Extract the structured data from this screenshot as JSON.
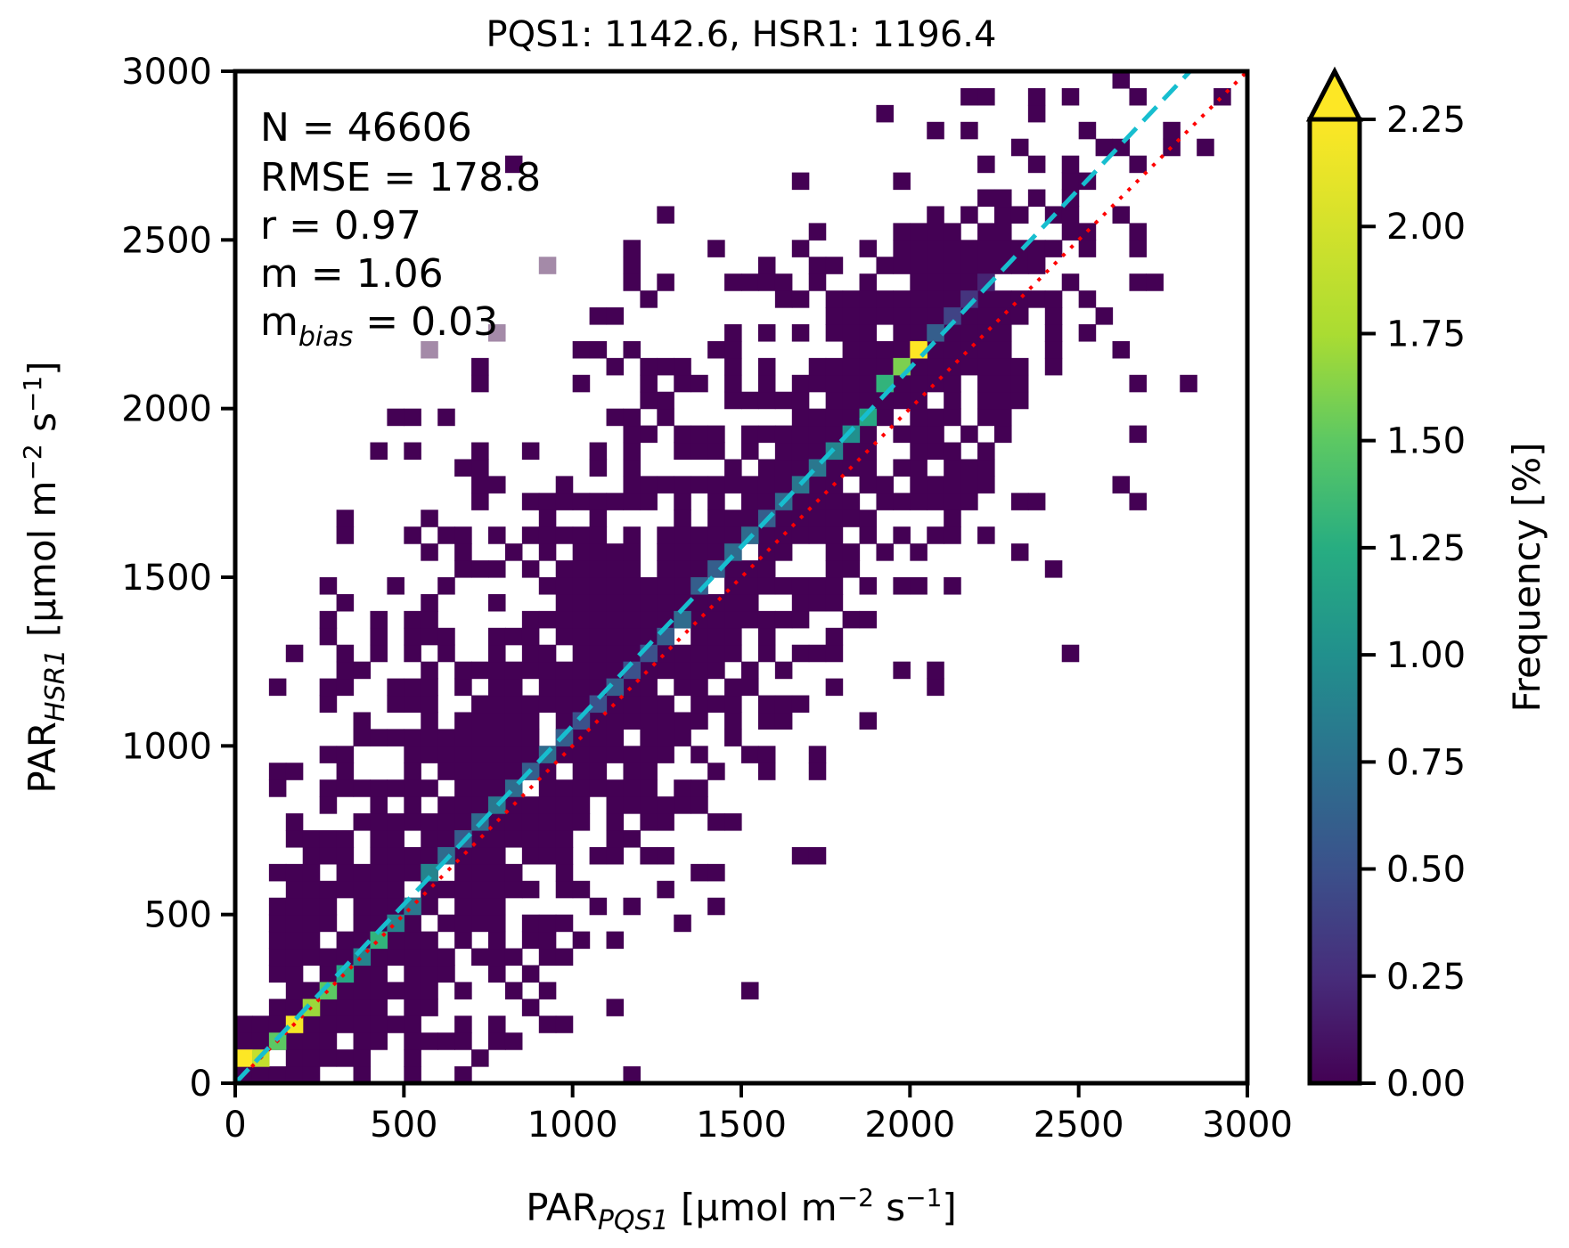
{
  "chart_data": {
    "type": "heatmap",
    "title": "PQS1: 1142.6, HSR1: 1196.4",
    "xlabel": {
      "base": "PAR",
      "sub": "PQS1",
      "rest": " [μmol m",
      "exp1": "−2",
      "mid": " s",
      "exp2": "−1",
      "end": "]"
    },
    "ylabel": {
      "base": "PAR",
      "sub": "HSR1",
      "rest": " [μmol m",
      "exp1": "−2",
      "mid": " s",
      "exp2": "−1",
      "end": "]"
    },
    "xlim": [
      0,
      3000
    ],
    "ylim": [
      0,
      3000
    ],
    "xticks": [
      "0",
      "500",
      "1000",
      "1500",
      "2000",
      "2500",
      "3000"
    ],
    "yticks": [
      "0",
      "500",
      "1000",
      "1500",
      "2000",
      "2500",
      "3000"
    ],
    "stats": {
      "n": "N = 46606",
      "rmse": "RMSE = 178.8",
      "r": "r = 0.97",
      "m": "m = 1.06",
      "mbias_base": "m",
      "mbias_sub": "bias",
      "mbias_val": " = 0.03"
    },
    "colorbar": {
      "label": "Frequency [%]",
      "ticks": [
        "0.00",
        "0.25",
        "0.50",
        "0.75",
        "1.00",
        "1.25",
        "1.50",
        "1.75",
        "2.00",
        "2.25"
      ],
      "range": [
        0,
        2.25
      ],
      "extend": "max",
      "colormap": "viridis"
    },
    "bin_width": 50,
    "fit_line": {
      "slope": 1.06,
      "intercept": 0,
      "color": "#17becf",
      "style": "dashed"
    },
    "identity_line": {
      "color": "#ff0000",
      "style": "dotted"
    },
    "diagonal_bins": [
      {
        "x": 25,
        "y": 75,
        "v": 2.3
      },
      {
        "x": 75,
        "y": 75,
        "v": 1.9
      },
      {
        "x": 125,
        "y": 125,
        "v": 1.5
      },
      {
        "x": 175,
        "y": 175,
        "v": 2.2
      },
      {
        "x": 225,
        "y": 225,
        "v": 1.7
      },
      {
        "x": 275,
        "y": 275,
        "v": 1.5
      },
      {
        "x": 325,
        "y": 325,
        "v": 1.2
      },
      {
        "x": 375,
        "y": 375,
        "v": 0.9
      },
      {
        "x": 425,
        "y": 425,
        "v": 1.3
      },
      {
        "x": 475,
        "y": 475,
        "v": 0.9
      },
      {
        "x": 525,
        "y": 525,
        "v": 0.8
      },
      {
        "x": 575,
        "y": 625,
        "v": 0.9
      },
      {
        "x": 625,
        "y": 675,
        "v": 0.7
      },
      {
        "x": 675,
        "y": 725,
        "v": 0.6
      },
      {
        "x": 725,
        "y": 775,
        "v": 0.7
      },
      {
        "x": 775,
        "y": 825,
        "v": 0.8
      },
      {
        "x": 825,
        "y": 875,
        "v": 0.7
      },
      {
        "x": 875,
        "y": 925,
        "v": 0.6
      },
      {
        "x": 925,
        "y": 975,
        "v": 0.7
      },
      {
        "x": 975,
        "y": 1025,
        "v": 0.6
      },
      {
        "x": 1025,
        "y": 1075,
        "v": 0.5
      },
      {
        "x": 1075,
        "y": 1125,
        "v": 0.5
      },
      {
        "x": 1125,
        "y": 1175,
        "v": 0.6
      },
      {
        "x": 1175,
        "y": 1225,
        "v": 0.5
      },
      {
        "x": 1225,
        "y": 1275,
        "v": 0.5
      },
      {
        "x": 1275,
        "y": 1325,
        "v": 0.6
      },
      {
        "x": 1325,
        "y": 1375,
        "v": 0.7
      },
      {
        "x": 1375,
        "y": 1475,
        "v": 0.6
      },
      {
        "x": 1425,
        "y": 1525,
        "v": 0.6
      },
      {
        "x": 1475,
        "y": 1575,
        "v": 0.7
      },
      {
        "x": 1525,
        "y": 1625,
        "v": 0.7
      },
      {
        "x": 1575,
        "y": 1675,
        "v": 0.6
      },
      {
        "x": 1625,
        "y": 1725,
        "v": 0.7
      },
      {
        "x": 1675,
        "y": 1775,
        "v": 0.8
      },
      {
        "x": 1725,
        "y": 1825,
        "v": 0.8
      },
      {
        "x": 1775,
        "y": 1875,
        "v": 0.9
      },
      {
        "x": 1825,
        "y": 1925,
        "v": 1.0
      },
      {
        "x": 1875,
        "y": 1975,
        "v": 1.2
      },
      {
        "x": 1925,
        "y": 2075,
        "v": 1.3
      },
      {
        "x": 1975,
        "y": 2125,
        "v": 1.6
      },
      {
        "x": 2025,
        "y": 2175,
        "v": 2.3
      },
      {
        "x": 2075,
        "y": 2225,
        "v": 0.6
      },
      {
        "x": 2125,
        "y": 2275,
        "v": 0.4
      },
      {
        "x": 2175,
        "y": 2325,
        "v": 0.3
      },
      {
        "x": 2225,
        "y": 2375,
        "v": 0.2
      }
    ]
  }
}
